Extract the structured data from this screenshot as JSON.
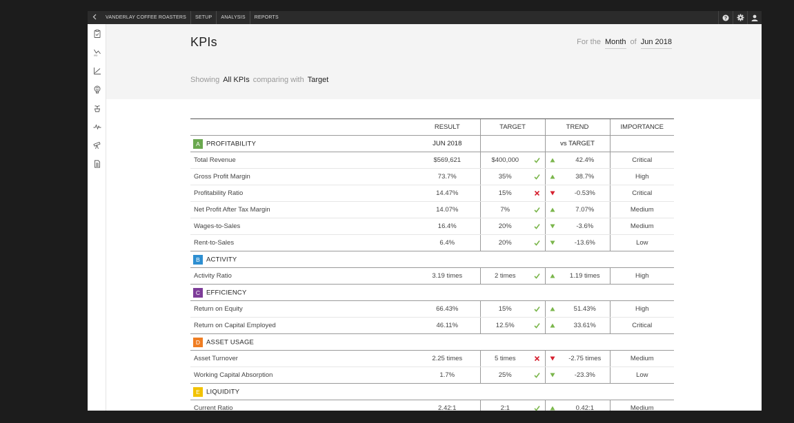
{
  "topbar": {
    "company": "VANDERLAY COFFEE ROASTERS",
    "nav": [
      "SETUP",
      "ANALYSIS",
      "REPORTS"
    ]
  },
  "sidebar": {
    "icons": [
      "clipboard-icon",
      "scatter-icon",
      "line-chart-icon",
      "brain-icon",
      "plant-icon",
      "pulse-icon",
      "telescope-icon",
      "document-icon"
    ]
  },
  "header": {
    "title": "KPIs",
    "period_prefix": "For the",
    "period_unit": "Month",
    "period_of": "of",
    "period_value": "Jun 2018",
    "showing_prefix": "Showing",
    "showing_value": "All KPIs",
    "comparing_prefix": "comparing with",
    "comparing_value": "Target"
  },
  "table": {
    "columns": {
      "result": "RESULT",
      "target": "TARGET",
      "trend": "TREND",
      "importance": "IMPORTANCE"
    },
    "period_label": "JUN 2018",
    "vs_label": "vs TARGET",
    "colors": {
      "up": "#7bb64c",
      "down_good": "#7bb64c",
      "bad": "#d6202f",
      "check": "#7bb64c"
    },
    "sections": [
      {
        "letter": "A",
        "name": "PROFITABILITY",
        "color": "#6aa84f",
        "rows": [
          {
            "name": "Total Revenue",
            "result": "$569,621",
            "target": "$400,000",
            "status": "check",
            "dir": "up",
            "trend": "42.4%",
            "importance": "Critical"
          },
          {
            "name": "Gross Profit Margin",
            "result": "73.7%",
            "target": "35%",
            "status": "check",
            "dir": "up",
            "trend": "38.7%",
            "importance": "High"
          },
          {
            "name": "Profitability Ratio",
            "result": "14.47%",
            "target": "15%",
            "status": "cross",
            "dir": "down-bad",
            "trend": "-0.53%",
            "importance": "Critical"
          },
          {
            "name": "Net Profit After Tax Margin",
            "result": "14.07%",
            "target": "7%",
            "status": "check",
            "dir": "up",
            "trend": "7.07%",
            "importance": "Medium"
          },
          {
            "name": "Wages-to-Sales",
            "result": "16.4%",
            "target": "20%",
            "status": "check",
            "dir": "down-good",
            "trend": "-3.6%",
            "importance": "Medium"
          },
          {
            "name": "Rent-to-Sales",
            "result": "6.4%",
            "target": "20%",
            "status": "check",
            "dir": "down-good",
            "trend": "-13.6%",
            "importance": "Low"
          }
        ]
      },
      {
        "letter": "B",
        "name": "ACTIVITY",
        "color": "#2e8fd1",
        "rows": [
          {
            "name": "Activity Ratio",
            "result": "3.19 times",
            "target": "2 times",
            "status": "check",
            "dir": "up",
            "trend": "1.19 times",
            "importance": "High"
          }
        ]
      },
      {
        "letter": "C",
        "name": "EFFICIENCY",
        "color": "#7d3c98",
        "rows": [
          {
            "name": "Return on Equity",
            "result": "66.43%",
            "target": "15%",
            "status": "check",
            "dir": "up",
            "trend": "51.43%",
            "importance": "High"
          },
          {
            "name": "Return on Capital Employed",
            "result": "46.11%",
            "target": "12.5%",
            "status": "check",
            "dir": "up",
            "trend": "33.61%",
            "importance": "Critical"
          }
        ]
      },
      {
        "letter": "D",
        "name": "ASSET USAGE",
        "color": "#ef7d22",
        "rows": [
          {
            "name": "Asset Turnover",
            "result": "2.25 times",
            "target": "5 times",
            "status": "cross",
            "dir": "down-bad",
            "trend": "-2.75 times",
            "importance": "Medium"
          },
          {
            "name": "Working Capital Absorption",
            "result": "1.7%",
            "target": "25%",
            "status": "check",
            "dir": "down-good",
            "trend": "-23.3%",
            "importance": "Low"
          }
        ]
      },
      {
        "letter": "E",
        "name": "LIQUIDITY",
        "color": "#f2c200",
        "rows": [
          {
            "name": "Current Ratio",
            "result": "2.42:1",
            "target": "2:1",
            "status": "check",
            "dir": "up",
            "trend": "0.42:1",
            "importance": "Medium"
          }
        ]
      }
    ]
  }
}
